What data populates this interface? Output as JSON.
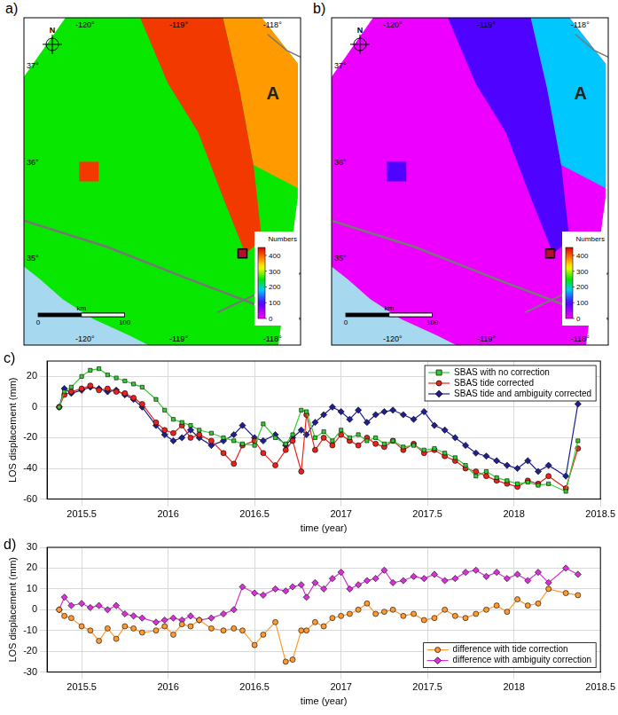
{
  "maps": [
    {
      "panel_label": "a)",
      "north_label": "N",
      "site_label": "A",
      "lon_range": [
        -120.65,
        -117.7
      ],
      "lat_range": [
        34.1,
        37.5
      ],
      "lon_ticks": [
        {
          "value": -120,
          "label": "-120°"
        },
        {
          "value": -119,
          "label": "-119°"
        },
        {
          "value": -118,
          "label": "-118°"
        }
      ],
      "lat_ticks": [
        {
          "value": 37,
          "label": "37°"
        },
        {
          "value": 36,
          "label": "36°"
        },
        {
          "value": 35,
          "label": "35°"
        }
      ],
      "scale_bar": {
        "unit": "km",
        "ticks": [
          0,
          100
        ]
      },
      "colorbar": {
        "title": "Numbers",
        "range": [
          0,
          450
        ],
        "ticks": [
          0,
          100,
          200,
          300,
          400
        ]
      },
      "zone_values": [
        250,
        420,
        370
      ]
    },
    {
      "panel_label": "b)",
      "north_label": "N",
      "site_label": "A",
      "lon_range": [
        -120.65,
        -117.7
      ],
      "lat_range": [
        34.1,
        37.5
      ],
      "lon_ticks": [
        {
          "value": -120,
          "label": "-120°"
        },
        {
          "value": -119,
          "label": "-119°"
        },
        {
          "value": -118,
          "label": "-118°"
        }
      ],
      "lat_ticks": [
        {
          "value": 37,
          "label": "37°"
        },
        {
          "value": 36,
          "label": "36°"
        },
        {
          "value": 35,
          "label": "35°"
        }
      ],
      "scale_bar": {
        "unit": "km",
        "ticks": [
          0,
          100
        ]
      },
      "colorbar": {
        "title": "Numbers",
        "range": [
          0,
          450
        ],
        "ticks": [
          0,
          100,
          200,
          300,
          400
        ]
      },
      "zone_values": [
        10,
        100,
        180
      ]
    }
  ],
  "chart_data": [
    {
      "type": "line",
      "panel_label": "c)",
      "x_label": "time (year)",
      "y_label": "LOS displacement (mm)",
      "x": [
        2015.37,
        2015.4,
        2015.44,
        2015.5,
        2015.55,
        2015.6,
        2015.65,
        2015.7,
        2015.75,
        2015.8,
        2015.85,
        2015.93,
        2015.98,
        2016.03,
        2016.08,
        2016.13,
        2016.18,
        2016.25,
        2016.32,
        2016.38,
        2016.43,
        2016.5,
        2016.55,
        2016.62,
        2016.68,
        2016.72,
        2016.77,
        2016.8,
        2016.85,
        2016.9,
        2016.95,
        2017.0,
        2017.05,
        2017.1,
        2017.15,
        2017.2,
        2017.25,
        2017.3,
        2017.36,
        2017.42,
        2017.48,
        2017.54,
        2017.6,
        2017.66,
        2017.72,
        2017.78,
        2017.84,
        2017.9,
        2017.96,
        2018.02,
        2018.08,
        2018.14,
        2018.2,
        2018.3,
        2018.37
      ],
      "xlim": [
        2015.3,
        2018.5
      ],
      "xticks": [
        2015.5,
        2016,
        2016.5,
        2017,
        2017.5,
        2018,
        2018.5
      ],
      "ylim": [
        -60,
        30
      ],
      "yticks": [
        -60,
        -40,
        -20,
        0,
        20
      ],
      "grid": true,
      "legend": "upper right",
      "series": [
        {
          "name": "SBAS with no correction",
          "color": "#33cc33",
          "marker": "square",
          "values": [
            0,
            10,
            13,
            20,
            24,
            25,
            21,
            19,
            17,
            15,
            13,
            5,
            -2,
            -8,
            -10,
            -12,
            -15,
            -17,
            -20,
            -22,
            -24,
            -25,
            -11,
            -20,
            -24,
            -18,
            -2,
            -3,
            -20,
            -16,
            -22,
            -15,
            -20,
            -18,
            -22,
            -20,
            -24,
            -22,
            -26,
            -25,
            -28,
            -27,
            -30,
            -33,
            -38,
            -45,
            -42,
            -46,
            -48,
            -50,
            -49,
            -51,
            -50,
            -55,
            -22
          ]
        },
        {
          "name": "SBAS tide corrected",
          "color": "#e8231c",
          "marker": "circle",
          "values": [
            0,
            8,
            10,
            12,
            14,
            11,
            12,
            10,
            9,
            6,
            2,
            -10,
            -15,
            -17,
            -12,
            -20,
            -18,
            -22,
            -30,
            -37,
            -25,
            -22,
            -30,
            -38,
            -28,
            -22,
            -42,
            -5,
            -28,
            -20,
            -25,
            -18,
            -22,
            -25,
            -20,
            -24,
            -26,
            -22,
            -28,
            -24,
            -30,
            -28,
            -32,
            -35,
            -40,
            -42,
            -45,
            -48,
            -50,
            -52,
            -48,
            -50,
            -45,
            -53,
            -27
          ]
        },
        {
          "name": "SBAS tide and ambiguity corrected",
          "color": "#1f1f8f",
          "marker": "diamond",
          "values": [
            0,
            12,
            9,
            11,
            13,
            12,
            10,
            11,
            8,
            5,
            0,
            -12,
            -18,
            -22,
            -20,
            -15,
            -20,
            -25,
            -22,
            -18,
            -12,
            -20,
            -22,
            -18,
            -25,
            -20,
            -15,
            -18,
            -10,
            -5,
            0,
            -3,
            -8,
            -2,
            -10,
            -5,
            -3,
            -2,
            -5,
            -8,
            -3,
            -12,
            -15,
            -20,
            -25,
            -30,
            -32,
            -35,
            -38,
            -40,
            -35,
            -42,
            -38,
            -45,
            2
          ]
        }
      ]
    },
    {
      "type": "line",
      "panel_label": "d)",
      "x_label": "time (year)",
      "y_label": "LOS displacement (mm)",
      "x": [
        2015.37,
        2015.4,
        2015.44,
        2015.5,
        2015.55,
        2015.6,
        2015.65,
        2015.7,
        2015.75,
        2015.8,
        2015.85,
        2015.93,
        2015.98,
        2016.03,
        2016.08,
        2016.13,
        2016.18,
        2016.25,
        2016.32,
        2016.38,
        2016.43,
        2016.5,
        2016.55,
        2016.62,
        2016.68,
        2016.72,
        2016.77,
        2016.8,
        2016.85,
        2016.9,
        2016.95,
        2017.0,
        2017.05,
        2017.1,
        2017.15,
        2017.2,
        2017.25,
        2017.3,
        2017.36,
        2017.42,
        2017.48,
        2017.54,
        2017.6,
        2017.66,
        2017.72,
        2017.78,
        2017.84,
        2017.9,
        2017.96,
        2018.02,
        2018.08,
        2018.14,
        2018.2,
        2018.3,
        2018.37
      ],
      "xlim": [
        2015.3,
        2018.5
      ],
      "xticks": [
        2015.5,
        2016,
        2016.5,
        2017,
        2017.5,
        2018,
        2018.5
      ],
      "ylim": [
        -30,
        30
      ],
      "yticks": [
        -30,
        -20,
        -10,
        0,
        10,
        20,
        30
      ],
      "grid": true,
      "legend": "lower right",
      "series": [
        {
          "name": "difference with tide correction",
          "color": "#ff9a33",
          "marker": "circle",
          "values": [
            0,
            -3,
            -4,
            -8,
            -10,
            -15,
            -9,
            -14,
            -8,
            -9,
            -11,
            -10,
            -8,
            -12,
            -7,
            -8,
            -5,
            -9,
            -10,
            -9,
            -10,
            -17,
            -12,
            -6,
            -25,
            -24,
            -10,
            -10,
            -6,
            -8,
            -4,
            -3,
            -2,
            0,
            3,
            -2,
            -1,
            0,
            -3,
            -2,
            -5,
            -4,
            0,
            -3,
            -4,
            -2,
            0,
            2,
            -1,
            5,
            2,
            3,
            10,
            8,
            7
          ]
        },
        {
          "name": "difference with ambiguity correction",
          "color": "#d633d6",
          "marker": "diamond",
          "values": [
            0,
            6,
            2,
            3,
            1,
            2,
            0,
            2,
            -2,
            -3,
            -4,
            -6,
            -5,
            -4,
            -5,
            -3,
            -5,
            -4,
            -2,
            0,
            11,
            8,
            7,
            10,
            9,
            11,
            12,
            6,
            13,
            10,
            15,
            18,
            10,
            12,
            14,
            15,
            19,
            13,
            14,
            16,
            15,
            17,
            14,
            15,
            18,
            19,
            16,
            18,
            15,
            17,
            14,
            18,
            13,
            20,
            17
          ]
        }
      ]
    }
  ]
}
